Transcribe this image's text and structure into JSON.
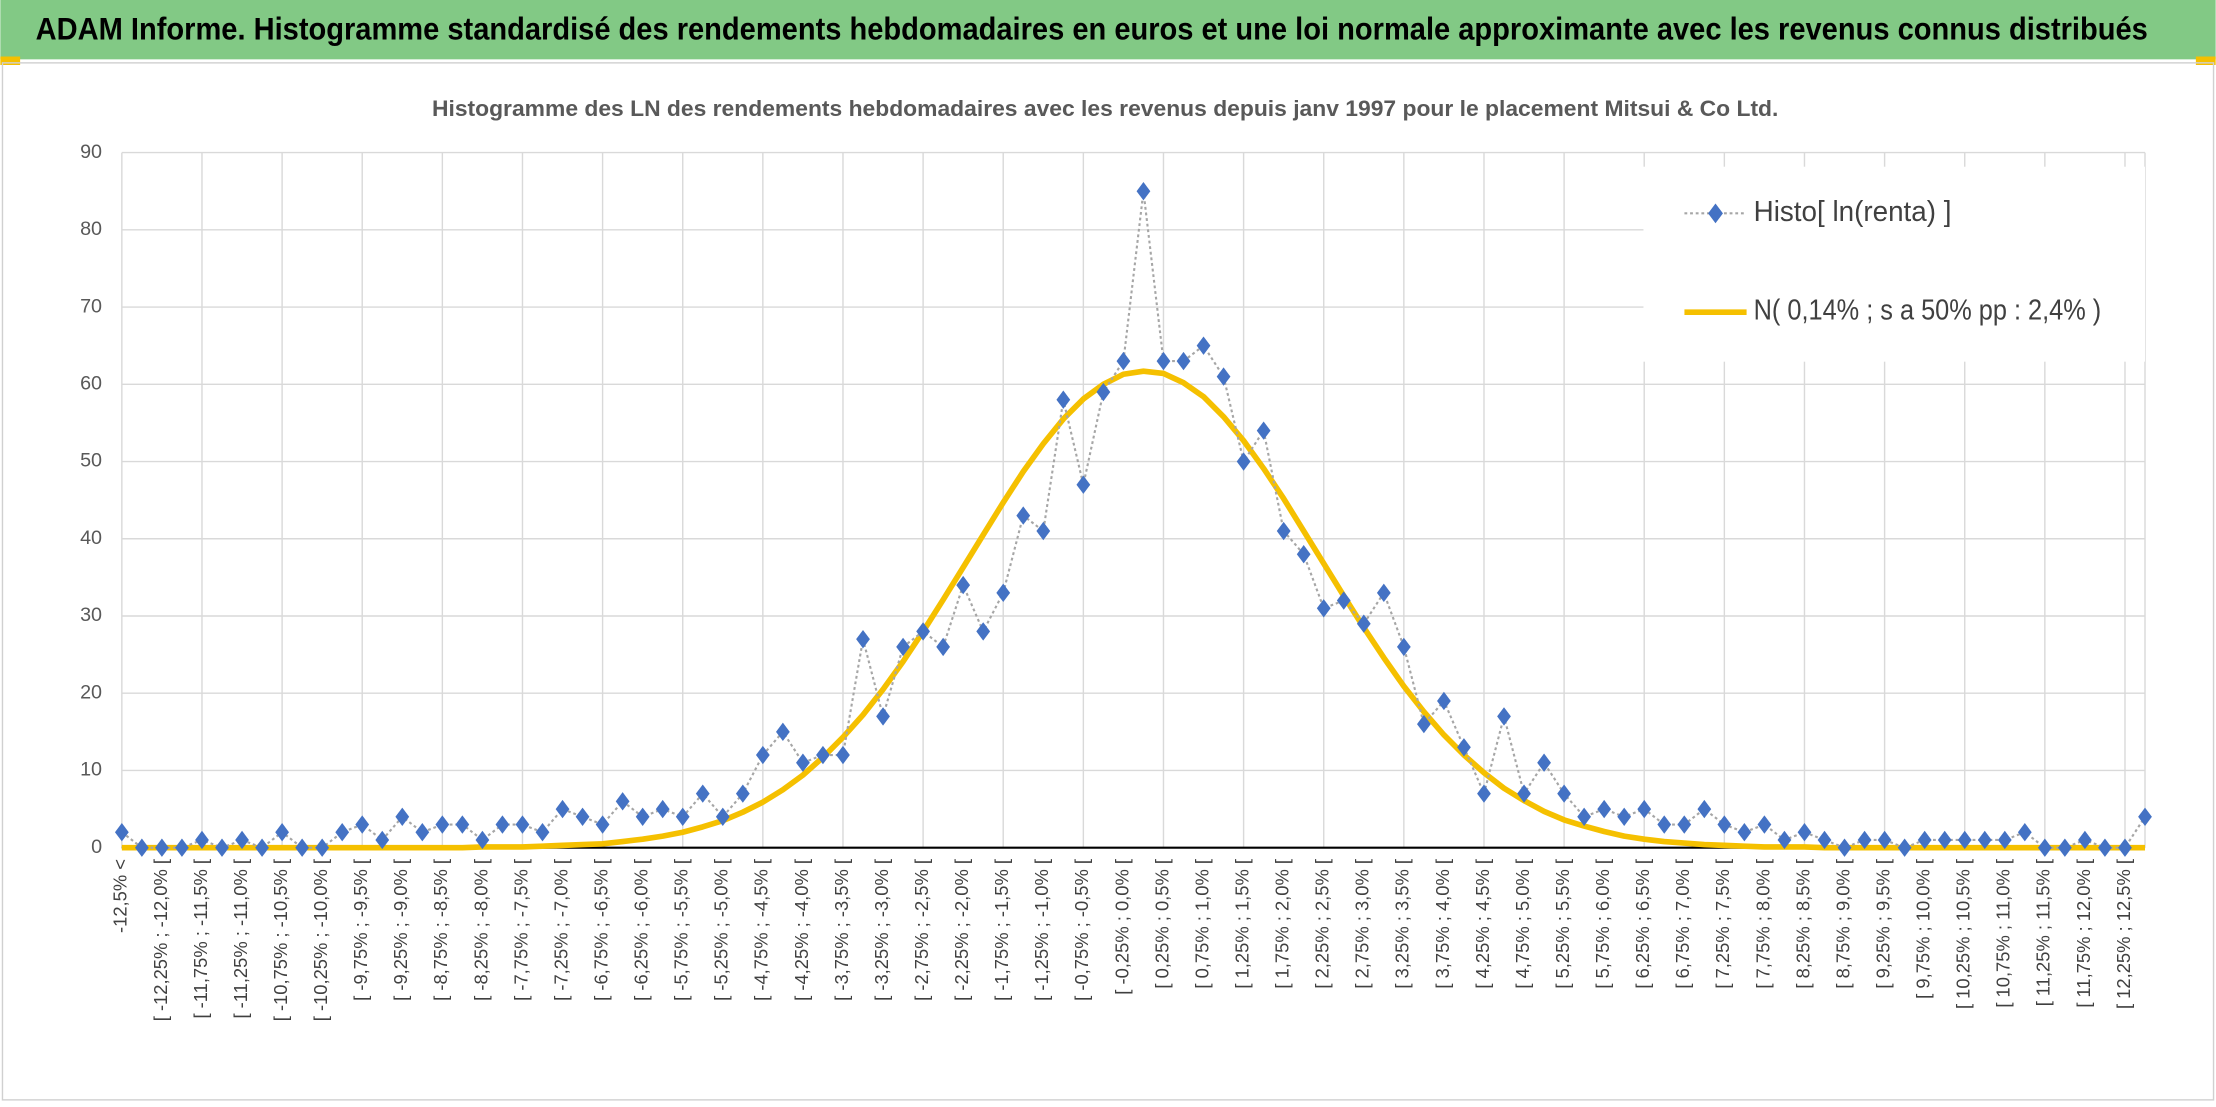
{
  "header": {
    "title": "ADAM Informe. Histogramme standardisé des rendements hebdomadaires en euros et une loi normale approximante avec les revenus connus distribués"
  },
  "chart_data": {
    "type": "line",
    "title": "Histogramme des LN des rendements hebdomadaires avec les revenus depuis janv 1997 pour le placement Mitsui & Co Ltd.",
    "categories": [
      "-12,5% <",
      null,
      "[ -12,25% ; -12,0% [",
      null,
      "[ -11,75% ; -11,5% [",
      null,
      "[ -11,25% ; -11,0% [",
      null,
      "[ -10,75% ; -10,5% [",
      null,
      "[ -10,25% ; -10,0% [",
      null,
      "[ -9,75% ; -9,5% [",
      null,
      "[ -9,25% ; -9,0% [",
      null,
      "[ -8,75% ; -8,5% [",
      null,
      "[ -8,25% ; -8,0% [",
      null,
      "[ -7,75% ; -7,5% [",
      null,
      "[ -7,25% ; -7,0% [",
      null,
      "[ -6,75% ; -6,5% [",
      null,
      "[ -6,25% ; -6,0% [",
      null,
      "[ -5,75% ; -5,5% [",
      null,
      "[ -5,25% ; -5,0% [",
      null,
      "[ -4,75% ; -4,5% [",
      null,
      "[ -4,25% ; -4,0% [",
      null,
      "[ -3,75% ; -3,5% [",
      null,
      "[ -3,25% ; -3,0% [",
      null,
      "[ -2,75% ; -2,5% [",
      null,
      "[ -2,25% ; -2,0% [",
      null,
      "[ -1,75% ; -1,5% [",
      null,
      "[ -1,25% ; -1,0% [",
      null,
      "[ -0,75% ; -0,5% [",
      null,
      "[ -0,25% ; 0,0% [",
      null,
      "[ 0,25% ; 0,5% [",
      null,
      "[ 0,75% ; 1,0% [",
      null,
      "[ 1,25% ; 1,5% [",
      null,
      "[ 1,75% ; 2,0% [",
      null,
      "[ 2,25% ; 2,5% [",
      null,
      "[ 2,75% ; 3,0% [",
      null,
      "[ 3,25% ; 3,5% [",
      null,
      "[ 3,75% ; 4,0% [",
      null,
      "[ 4,25% ; 4,5% [",
      null,
      "[ 4,75% ; 5,0% [",
      null,
      "[ 5,25% ; 5,5% [",
      null,
      "[ 5,75% ; 6,0% [",
      null,
      "[ 6,25% ; 6,5% [",
      null,
      "[ 6,75% ; 7,0% [",
      null,
      "[ 7,25% ; 7,5% [",
      null,
      "[ 7,75% ; 8,0% [",
      null,
      "[ 8,25% ; 8,5% [",
      null,
      "[ 8,75% ; 9,0% [",
      null,
      "[ 9,25% ; 9,5% [",
      null,
      "[ 9,75% ; 10,0% [",
      null,
      "[ 10,25% ; 10,5% [",
      null,
      "[ 10,75% ; 11,0% [",
      null,
      "[ 11,25% ; 11,5% [",
      null,
      "[ 11,75% ; 12,0% [",
      null,
      "[ 12,25% ; 12,5% [",
      null
    ],
    "series": [
      {
        "name": "Histo[ ln(renta) ]",
        "color": "#4472c4",
        "marker": "diamond",
        "values": [
          2,
          0,
          0,
          0,
          1,
          0,
          1,
          0,
          2,
          0,
          0,
          2,
          3,
          1,
          4,
          2,
          3,
          3,
          1,
          3,
          3,
          2,
          5,
          4,
          3,
          6,
          4,
          5,
          4,
          7,
          4,
          7,
          12,
          15,
          11,
          12,
          12,
          27,
          17,
          26,
          28,
          26,
          34,
          28,
          33,
          43,
          41,
          58,
          47,
          59,
          63,
          85,
          63,
          63,
          65,
          61,
          50,
          54,
          41,
          38,
          31,
          32,
          29,
          33,
          26,
          16,
          19,
          13,
          7,
          17,
          7,
          11,
          7,
          4,
          5,
          4,
          5,
          3,
          3,
          5,
          3,
          2,
          3,
          1,
          2,
          1,
          0,
          1,
          1,
          0,
          1,
          1,
          1,
          1,
          1,
          2,
          0,
          0,
          1,
          0,
          0,
          4
        ]
      },
      {
        "name": "N( 0,14% ; s a 50% pp : 2,4% )",
        "color": "#f5c000",
        "marker": "none",
        "values": [
          0,
          0,
          0,
          0,
          0,
          0,
          0,
          0,
          0,
          0,
          0,
          0,
          0,
          0,
          0,
          0,
          0,
          0,
          0.1,
          0.1,
          0.1,
          0.2,
          0.3,
          0.4,
          0.5,
          0.8,
          1.1,
          1.5,
          2.0,
          2.7,
          3.5,
          4.6,
          5.9,
          7.5,
          9.4,
          11.7,
          14.3,
          17.2,
          20.5,
          24.1,
          28.0,
          32.1,
          36.3,
          40.5,
          44.7,
          48.7,
          52.3,
          55.5,
          58.1,
          60.0,
          61.3,
          61.7,
          61.4,
          60.2,
          58.4,
          55.8,
          52.7,
          49.1,
          45.2,
          41.0,
          36.8,
          32.6,
          28.5,
          24.6,
          20.9,
          17.6,
          14.6,
          12.0,
          9.7,
          7.7,
          6.1,
          4.7,
          3.6,
          2.8,
          2.1,
          1.5,
          1.1,
          0.8,
          0.6,
          0.4,
          0.3,
          0.2,
          0.1,
          0.1,
          0.1,
          0,
          0,
          0,
          0,
          0,
          0,
          0,
          0,
          0,
          0,
          0,
          0,
          0,
          0,
          0,
          0,
          0
        ]
      }
    ],
    "ylim": [
      0,
      90
    ],
    "yticks": [
      0,
      10,
      20,
      30,
      40,
      50,
      60,
      70,
      80,
      90
    ],
    "grid": true,
    "legend": "top-right"
  }
}
